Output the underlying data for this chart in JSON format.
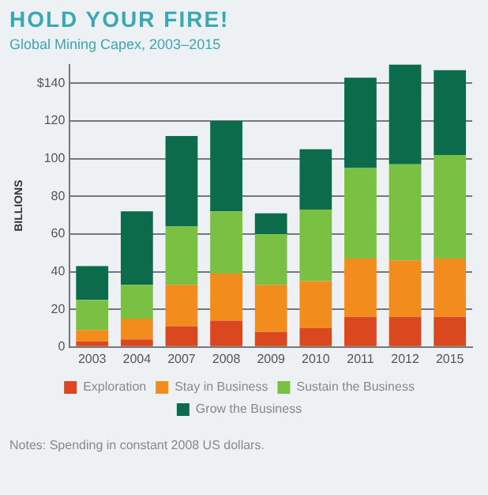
{
  "chart_data": {
    "type": "bar",
    "title": "HOLD YOUR FIRE!",
    "subtitle": "Global Mining Capex, 2003–2015",
    "ylabel": "BILLIONS",
    "categories": [
      "2003",
      "2004",
      "2007",
      "2008",
      "2009",
      "2010",
      "2011",
      "2012",
      "2015"
    ],
    "stacked": true,
    "series": [
      {
        "name": "Exploration",
        "color": "#d9481f",
        "values": [
          3,
          4,
          11,
          14,
          8,
          10,
          16,
          16,
          16
        ]
      },
      {
        "name": "Stay in Business",
        "color": "#f28c1c",
        "values": [
          6,
          11,
          22,
          25,
          25,
          25,
          31,
          30,
          31
        ]
      },
      {
        "name": "Sustain the Business",
        "color": "#7ac143",
        "values": [
          16,
          18,
          31,
          33,
          27,
          38,
          48,
          51,
          55
        ]
      },
      {
        "name": "Grow the Business",
        "color": "#0b6b4a",
        "values": [
          18,
          39,
          48,
          48,
          11,
          32,
          48,
          53,
          45
        ]
      }
    ],
    "ylim": [
      0,
      150
    ],
    "yticks": [
      0,
      20,
      40,
      60,
      80,
      100,
      120,
      {
        "value": 140,
        "label": "$140"
      }
    ],
    "grid": "y",
    "legend": "bottom",
    "annotations": [
      "Notes: Spending in constant 2008 US dollars."
    ]
  }
}
